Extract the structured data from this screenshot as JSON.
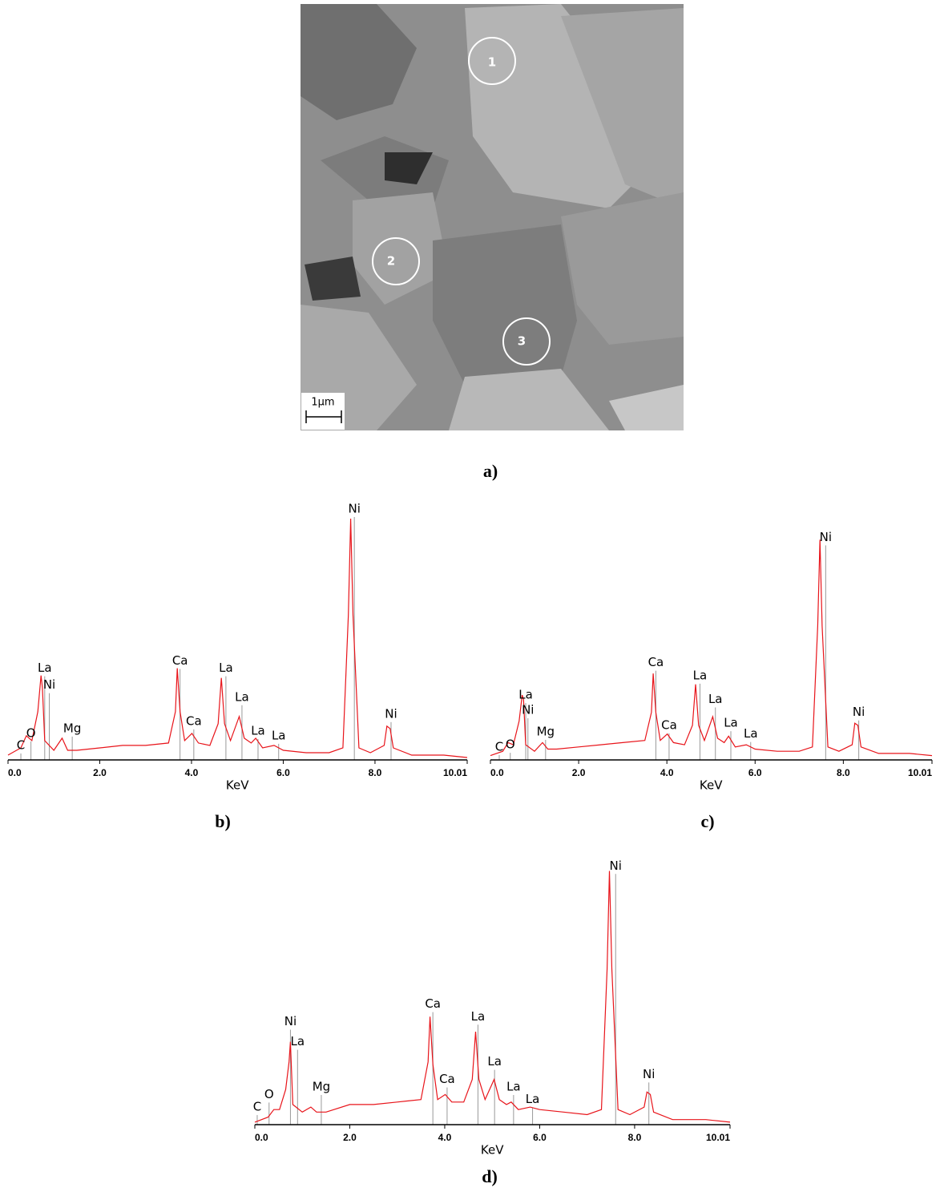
{
  "figure": {
    "panel_labels": [
      "a)",
      "b)",
      "c)",
      "d)"
    ],
    "sem": {
      "markers": [
        "1",
        "2",
        "3"
      ],
      "scale_bar": "1μm"
    }
  },
  "chart_data": [
    {
      "type": "line",
      "x_label": "KeV",
      "xlim": [
        0,
        10.01
      ],
      "ylim": [
        0,
        105
      ],
      "xticks": [
        {
          "value": 0,
          "label": "0.0"
        },
        {
          "value": 2,
          "label": "2.0"
        },
        {
          "value": 4,
          "label": "4.0"
        },
        {
          "value": 6,
          "label": "6.0"
        },
        {
          "value": 8,
          "label": "8.0"
        },
        10.01
      ],
      "series": [
        {
          "color": "#e8141a",
          "x": [
            0,
            0.28,
            0.4,
            0.52,
            0.65,
            0.72,
            0.75,
            0.8,
            1.0,
            1.18,
            1.3,
            1.5,
            2.0,
            2.5,
            3.0,
            3.5,
            3.65,
            3.69,
            3.75,
            3.85,
            4.01,
            4.15,
            4.4,
            4.58,
            4.65,
            4.72,
            4.85,
            5.04,
            5.15,
            5.3,
            5.4,
            5.55,
            5.8,
            6.0,
            6.5,
            7.0,
            7.3,
            7.42,
            7.47,
            7.52,
            7.65,
            7.9,
            8.2,
            8.26,
            8.33,
            8.4,
            8.8,
            9.5,
            10.01
          ],
          "values": [
            2,
            5,
            10,
            8,
            20,
            35,
            30,
            8,
            4,
            9,
            4,
            4,
            5,
            6,
            6,
            7,
            20,
            38,
            20,
            8,
            11,
            7,
            6,
            15,
            34,
            15,
            8,
            18,
            9,
            7,
            9,
            5,
            6,
            4,
            3,
            3,
            5,
            60,
            100,
            60,
            5,
            3,
            6,
            14,
            13,
            5,
            2,
            2,
            1
          ]
        }
      ],
      "peak_labels": [
        {
          "text": "C",
          "x": 0.28,
          "y": 6
        },
        {
          "text": "O",
          "x": 0.5,
          "y": 11
        },
        {
          "text": "La",
          "x": 0.8,
          "y": 38
        },
        {
          "text": "Ni",
          "x": 0.9,
          "y": 31
        },
        {
          "text": "Mg",
          "x": 1.4,
          "y": 13
        },
        {
          "text": "Ca",
          "x": 3.75,
          "y": 41
        },
        {
          "text": "Ca",
          "x": 4.05,
          "y": 16
        },
        {
          "text": "La",
          "x": 4.75,
          "y": 38
        },
        {
          "text": "La",
          "x": 5.1,
          "y": 26
        },
        {
          "text": "La",
          "x": 5.45,
          "y": 12
        },
        {
          "text": "La",
          "x": 5.9,
          "y": 10
        },
        {
          "text": "Ni",
          "x": 7.55,
          "y": 104
        },
        {
          "text": "Ni",
          "x": 8.35,
          "y": 19
        }
      ]
    },
    {
      "type": "line",
      "x_label": "KeV",
      "xlim": [
        0,
        10.01
      ],
      "ylim": [
        0,
        105
      ],
      "xticks": [
        {
          "value": 0,
          "label": "0.0"
        },
        {
          "value": 2,
          "label": "2.0"
        },
        {
          "value": 4,
          "label": "4.0"
        },
        {
          "value": 6,
          "label": "6.0"
        },
        {
          "value": 8,
          "label": "8.0"
        },
        10.01
      ],
      "series": [
        {
          "color": "#e8141a",
          "x": [
            0,
            0.28,
            0.4,
            0.52,
            0.65,
            0.72,
            0.75,
            0.8,
            1.0,
            1.18,
            1.3,
            1.5,
            2.0,
            2.5,
            3.0,
            3.5,
            3.65,
            3.69,
            3.75,
            3.85,
            4.01,
            4.15,
            4.4,
            4.58,
            4.65,
            4.72,
            4.85,
            5.04,
            5.15,
            5.3,
            5.4,
            5.55,
            5.8,
            6.0,
            6.5,
            7.0,
            7.3,
            7.42,
            7.47,
            7.52,
            7.65,
            7.9,
            8.2,
            8.26,
            8.33,
            8.4,
            8.8,
            9.5,
            10.01
          ],
          "values": [
            2,
            4,
            8,
            7,
            18,
            30,
            28,
            7,
            4,
            8,
            5,
            5,
            6,
            7,
            8,
            9,
            22,
            40,
            22,
            9,
            12,
            8,
            7,
            16,
            35,
            16,
            9,
            20,
            10,
            8,
            11,
            6,
            7,
            5,
            4,
            4,
            6,
            62,
            102,
            62,
            6,
            4,
            7,
            17,
            16,
            6,
            3,
            3,
            2
          ]
        }
      ],
      "peak_labels": [
        {
          "text": "C",
          "x": 0.2,
          "y": 6
        },
        {
          "text": "O",
          "x": 0.45,
          "y": 7
        },
        {
          "text": "La",
          "x": 0.8,
          "y": 30
        },
        {
          "text": "Ni",
          "x": 0.85,
          "y": 23
        },
        {
          "text": "Mg",
          "x": 1.25,
          "y": 13
        },
        {
          "text": "Ca",
          "x": 3.75,
          "y": 45
        },
        {
          "text": "Ca",
          "x": 4.05,
          "y": 16
        },
        {
          "text": "La",
          "x": 4.75,
          "y": 39
        },
        {
          "text": "La",
          "x": 5.1,
          "y": 28
        },
        {
          "text": "La",
          "x": 5.45,
          "y": 17
        },
        {
          "text": "La",
          "x": 5.9,
          "y": 12
        },
        {
          "text": "Ni",
          "x": 7.6,
          "y": 103
        },
        {
          "text": "Ni",
          "x": 8.35,
          "y": 22
        }
      ]
    },
    {
      "type": "line",
      "x_label": "KeV",
      "xlim": [
        0,
        10.01
      ],
      "ylim": [
        0,
        105
      ],
      "xticks": [
        {
          "value": 0,
          "label": "0.0"
        },
        {
          "value": 2,
          "label": "2.0"
        },
        {
          "value": 4,
          "label": "4.0"
        },
        {
          "value": 6,
          "label": "6.0"
        },
        {
          "value": 8,
          "label": "8.0"
        },
        10.01
      ],
      "series": [
        {
          "color": "#e8141a",
          "x": [
            0,
            0.28,
            0.4,
            0.52,
            0.65,
            0.72,
            0.75,
            0.8,
            1.0,
            1.18,
            1.3,
            1.5,
            2.0,
            2.5,
            3.0,
            3.5,
            3.65,
            3.69,
            3.75,
            3.85,
            4.01,
            4.15,
            4.4,
            4.58,
            4.65,
            4.72,
            4.85,
            5.04,
            5.15,
            5.3,
            5.4,
            5.55,
            5.8,
            6.0,
            6.5,
            7.0,
            7.3,
            7.42,
            7.47,
            7.52,
            7.65,
            7.9,
            8.2,
            8.26,
            8.33,
            8.4,
            8.8,
            9.5,
            10.01
          ],
          "values": [
            1,
            3,
            6,
            6,
            14,
            25,
            33,
            8,
            5,
            7,
            5,
            5,
            8,
            8,
            9,
            10,
            25,
            43,
            24,
            10,
            12,
            9,
            9,
            18,
            37,
            18,
            10,
            18,
            10,
            8,
            9,
            6,
            7,
            6,
            5,
            4,
            6,
            62,
            101,
            62,
            6,
            4,
            7,
            13,
            12,
            5,
            2,
            2,
            1
          ]
        }
      ],
      "peak_labels": [
        {
          "text": "C",
          "x": 0.05,
          "y": 7
        },
        {
          "text": "O",
          "x": 0.3,
          "y": 12
        },
        {
          "text": "Ni",
          "x": 0.75,
          "y": 41
        },
        {
          "text": "La",
          "x": 0.9,
          "y": 33
        },
        {
          "text": "Mg",
          "x": 1.4,
          "y": 15
        },
        {
          "text": "Ca",
          "x": 3.75,
          "y": 48
        },
        {
          "text": "Ca",
          "x": 4.05,
          "y": 18
        },
        {
          "text": "La",
          "x": 4.7,
          "y": 43
        },
        {
          "text": "La",
          "x": 5.05,
          "y": 25
        },
        {
          "text": "La",
          "x": 5.45,
          "y": 15
        },
        {
          "text": "La",
          "x": 5.85,
          "y": 10
        },
        {
          "text": "Ni",
          "x": 7.6,
          "y": 103
        },
        {
          "text": "Ni",
          "x": 8.3,
          "y": 20
        }
      ]
    }
  ]
}
